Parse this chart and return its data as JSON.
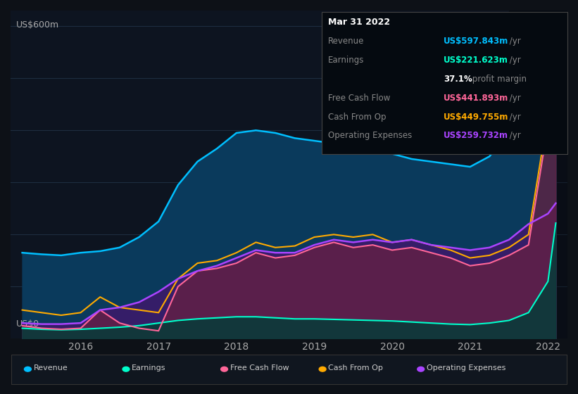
{
  "bg_color": "#0d1117",
  "plot_bg_color": "#0d1420",
  "grid_color": "#1e2d40",
  "ylabel_top": "US$600m",
  "ylabel_bottom": "US$0",
  "x_years": [
    2015.25,
    2015.5,
    2015.75,
    2016.0,
    2016.25,
    2016.5,
    2016.75,
    2017.0,
    2017.25,
    2017.5,
    2017.75,
    2018.0,
    2018.25,
    2018.5,
    2018.75,
    2019.0,
    2019.25,
    2019.5,
    2019.75,
    2020.0,
    2020.25,
    2020.5,
    2020.75,
    2021.0,
    2021.25,
    2021.5,
    2021.75,
    2022.0,
    2022.1
  ],
  "revenue": [
    165,
    162,
    160,
    165,
    168,
    175,
    195,
    225,
    295,
    340,
    365,
    395,
    400,
    395,
    385,
    380,
    375,
    365,
    360,
    355,
    345,
    340,
    335,
    330,
    350,
    400,
    470,
    590,
    598
  ],
  "earnings": [
    20,
    18,
    17,
    18,
    20,
    22,
    25,
    30,
    35,
    38,
    40,
    42,
    42,
    40,
    38,
    38,
    37,
    36,
    35,
    34,
    32,
    30,
    28,
    27,
    30,
    35,
    50,
    110,
    222
  ],
  "free_cash_flow": [
    25,
    20,
    18,
    20,
    55,
    30,
    20,
    15,
    100,
    130,
    135,
    145,
    165,
    155,
    160,
    175,
    185,
    175,
    180,
    170,
    175,
    165,
    155,
    140,
    145,
    160,
    180,
    410,
    442
  ],
  "cash_from_op": [
    55,
    50,
    45,
    50,
    80,
    60,
    55,
    50,
    115,
    145,
    150,
    165,
    185,
    175,
    178,
    195,
    200,
    195,
    200,
    185,
    190,
    180,
    170,
    155,
    160,
    175,
    200,
    430,
    450
  ],
  "operating_expenses": [
    30,
    28,
    28,
    30,
    55,
    60,
    70,
    90,
    115,
    130,
    140,
    155,
    170,
    165,
    165,
    180,
    190,
    185,
    190,
    185,
    190,
    180,
    175,
    170,
    175,
    190,
    220,
    240,
    260
  ],
  "revenue_color": "#00bfff",
  "earnings_color": "#00ffcc",
  "free_cash_flow_color": "#ff6699",
  "cash_from_op_color": "#ffaa00",
  "operating_expenses_color": "#aa44ff",
  "revenue_fill": "#0a3a5c",
  "earnings_fill": "#0a3a3a",
  "free_cash_flow_fill": "#6b2040",
  "cash_from_op_fill": "#4a3500",
  "operating_expenses_fill": "#3a1a6a",
  "tooltip_title": "Mar 31 2022",
  "tooltip_bg": "#0a0a0a",
  "tooltip_border": "#333333",
  "series_names": [
    "Revenue",
    "Earnings",
    "Free Cash Flow",
    "Cash From Op",
    "Operating Expenses"
  ],
  "xlim": [
    2015.1,
    2022.25
  ],
  "ylim": [
    0,
    630
  ],
  "xticks": [
    2016,
    2017,
    2018,
    2019,
    2020,
    2021,
    2022
  ],
  "xticklabels": [
    "2016",
    "2017",
    "2018",
    "2019",
    "2020",
    "2021",
    "2022"
  ],
  "highlight_start": 2021.5,
  "highlight_end": 2022.25
}
